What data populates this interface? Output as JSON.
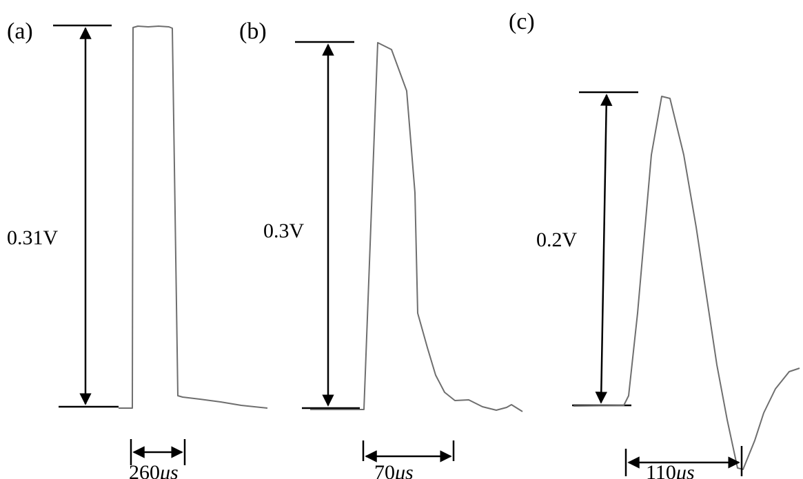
{
  "panels": [
    {
      "id": "a",
      "label": "(a)",
      "amplitude_label": "0.31V",
      "width_value": "260",
      "width_unit": "μs"
    },
    {
      "id": "b",
      "label": "(b)",
      "amplitude_label": "0.3V",
      "width_value": "70",
      "width_unit": "μs"
    },
    {
      "id": "c",
      "label": "(c)",
      "amplitude_label": "0.2V",
      "width_value": "110",
      "width_unit": "μs"
    }
  ],
  "colors": {
    "waveform": "#6e6e6e",
    "annotation": "#000000"
  }
}
